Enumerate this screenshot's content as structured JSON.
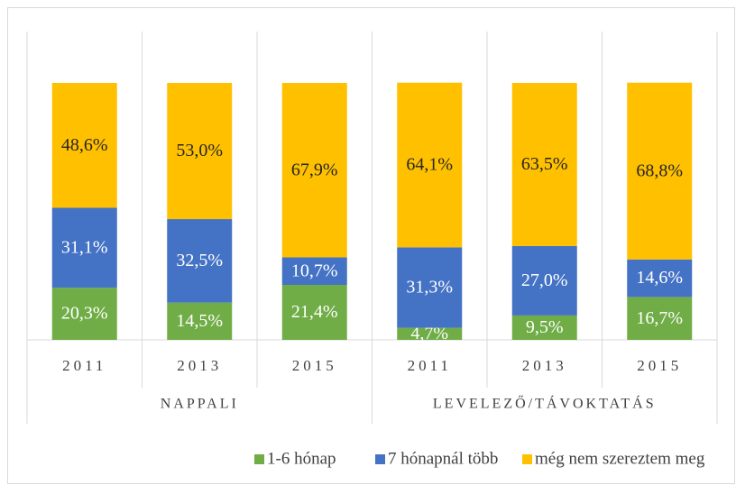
{
  "chart_data": {
    "type": "stacked_bar_100",
    "categories": [
      "2011",
      "2013",
      "2015",
      "2011",
      "2013",
      "2015"
    ],
    "groups": [
      "NAPPALI",
      "LEVELEZŐ/TÁVOKTATÁS"
    ],
    "ylim": [
      0,
      100
    ],
    "series": [
      {
        "name": "1-6 hónap",
        "color": "#70ad47",
        "label_color": "#ffffff",
        "values": [
          20.3,
          14.5,
          21.4,
          4.7,
          9.5,
          16.7
        ],
        "value_labels": [
          "20,3%",
          "14,5%",
          "21,4%",
          "4,7%",
          "9,5%",
          "16,7%"
        ]
      },
      {
        "name": "7 hónapnál több",
        "color": "#4472c4",
        "label_color": "#ffffff",
        "values": [
          31.1,
          32.5,
          10.7,
          31.3,
          27.0,
          14.6
        ],
        "value_labels": [
          "31,1%",
          "32,5%",
          "10,7%",
          "31,3%",
          "27,0%",
          "14,6%"
        ]
      },
      {
        "name": "még nem szereztem meg",
        "color": "#ffc000",
        "label_color": "#262626",
        "values": [
          48.6,
          53.0,
          67.9,
          64.1,
          63.5,
          68.8
        ],
        "value_labels": [
          "48,6%",
          "53,0%",
          "67,9%",
          "64,1%",
          "63,5%",
          "68,8%"
        ]
      }
    ],
    "legend": "bottom"
  }
}
